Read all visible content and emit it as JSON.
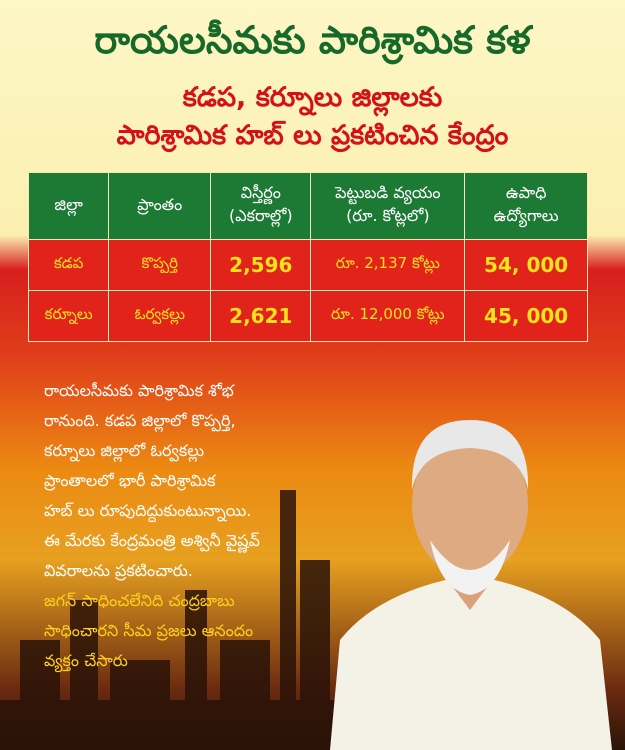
{
  "header": {
    "title": "రాయలసీమకు పారిశ్రామిక కళ",
    "subtitle": [
      "కడప, కర్నూలు జిల్లాలకు",
      "పారిశ్రామిక హబ్ లు ప్రకటించిన కేంద్రం"
    ]
  },
  "table": {
    "columns": [
      [
        "జిల్లా"
      ],
      [
        "ప్రాంతం"
      ],
      [
        "విస్తీర్ణం",
        "(ఎకరాల్లో)"
      ],
      [
        "పెట్టుబడి వ్యయం",
        "(రూ. కోట్లలో)"
      ],
      [
        "ఉపాధి",
        "ఉద్యోగాలు"
      ]
    ],
    "rows": [
      [
        "కడప",
        "కొప్పర్తి",
        "2,596",
        "రూ. 2,137 కోట్లు",
        "54, 000"
      ],
      [
        "కర్నూలు",
        "ఓర్వకల్లు",
        "2,621",
        "రూ. 12,000 కోట్లు",
        "45, 000"
      ]
    ]
  },
  "body": {
    "paragraph": [
      "రాయలసీమకు పారిశ్రామిక శోభ",
      "రానుంది. కడప జిల్లాలో కొప్పర్తి,",
      "కర్నూలు జిల్లాలో ఓర్వకల్లు",
      "ప్రాంతాలలో భారీ పారిశ్రామిక",
      "హబ్ లు రూపుదిద్దుకుంటున్నాయి.",
      "ఈ మేరకు కేంద్రమంత్రి అశ్వినీ వైష్ణవ్",
      "వివరాలను ప్రకటించారు."
    ],
    "highlight": [
      "జగన్ సాధించలేనిది చంద్రబాబు",
      "సాధించారని సీమ ప్రజలు ఆనందం",
      "వ్యక్తం చేసారు"
    ]
  }
}
